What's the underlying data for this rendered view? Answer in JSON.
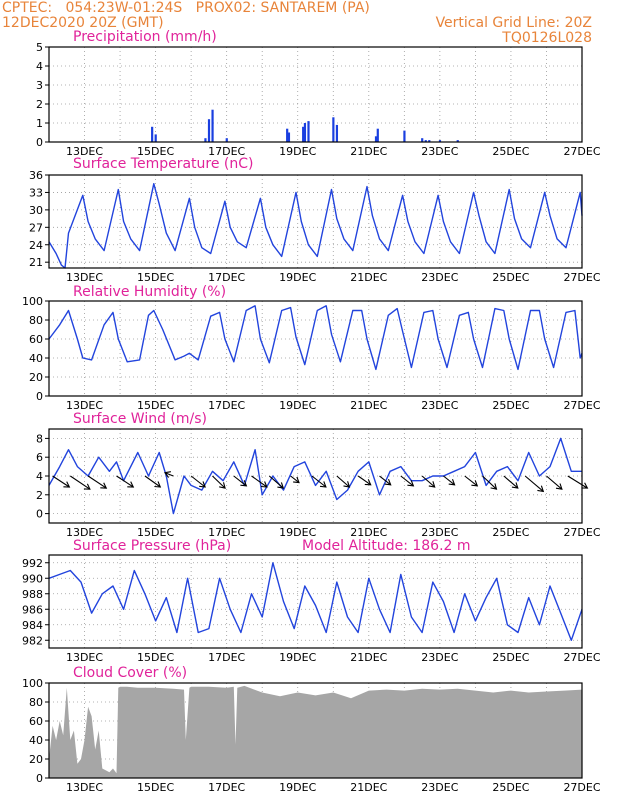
{
  "header": {
    "line1_left": "CPTEC:   054:23W-01:24S   PROX02: SANTAREM (PA)",
    "line2_left": "12DEC2020 20Z (GMT)",
    "line2_right": "Vertical Grid Line: 20Z",
    "line3_right": "TQ0126L028"
  },
  "colors": {
    "header": "#e8843a",
    "title": "#e0239a",
    "line": "#2244dd",
    "bar": "#1a3fe0",
    "cloud": "#a6a6a6",
    "arrow": "#000000"
  },
  "chart_data": [
    {
      "type": "bar",
      "title": "Precipitation (mm/h)",
      "ylim": [
        0,
        5
      ],
      "yticks": [
        0,
        1,
        2,
        3,
        4,
        5
      ],
      "xticks": [
        "13DEC",
        "15DEC",
        "17DEC",
        "19DEC",
        "21DEC",
        "23DEC",
        "25DEC",
        "27DEC"
      ],
      "x": [
        2.9,
        3.0,
        4.4,
        4.5,
        4.6,
        5.0,
        6.7,
        6.75,
        7.15,
        7.2,
        7.3,
        8.0,
        8.1,
        9.2,
        9.25,
        10.0,
        10.5,
        10.6,
        10.7,
        11.0,
        11.5
      ],
      "values": [
        0.8,
        0.4,
        0.2,
        1.2,
        1.7,
        0.2,
        0.7,
        0.5,
        0.8,
        1.0,
        1.1,
        1.3,
        0.9,
        0.3,
        0.7,
        0.6,
        0.2,
        0.1,
        0.1,
        0.1,
        0.1
      ]
    },
    {
      "type": "line",
      "title": "Surface Temperature (nC)",
      "ylim": [
        20,
        36
      ],
      "yticks": [
        21,
        24,
        27,
        30,
        33,
        36
      ],
      "xticks": [
        "13DEC",
        "15DEC",
        "17DEC",
        "19DEC",
        "21DEC",
        "23DEC",
        "25DEC",
        "27DEC"
      ],
      "x": [
        0,
        0.2,
        0.35,
        0.45,
        0.55,
        0.95,
        1.1,
        1.3,
        1.55,
        1.95,
        2.1,
        2.3,
        2.55,
        2.95,
        3.1,
        3.3,
        3.55,
        3.95,
        4.1,
        4.3,
        4.55,
        4.95,
        5.1,
        5.3,
        5.55,
        5.95,
        6.1,
        6.3,
        6.55,
        6.95,
        7.1,
        7.3,
        7.55,
        7.95,
        8.1,
        8.3,
        8.55,
        8.95,
        9.1,
        9.3,
        9.55,
        9.95,
        10.1,
        10.3,
        10.55,
        10.95,
        11.1,
        11.3,
        11.55,
        11.95,
        12.1,
        12.3,
        12.55,
        12.95,
        13.1,
        13.3,
        13.55,
        13.95,
        14.1,
        14.3,
        14.55,
        14.95,
        15.0
      ],
      "values": [
        24.5,
        22.5,
        20.5,
        20.0,
        26,
        32.5,
        28,
        25,
        23,
        33.5,
        28,
        25,
        23,
        34.5,
        31,
        26,
        23,
        32,
        27,
        23.5,
        22.5,
        31.5,
        27,
        24.5,
        23.5,
        32,
        27,
        24,
        22,
        33,
        28,
        24,
        22,
        33.5,
        28.5,
        25,
        23,
        34,
        29,
        25,
        23,
        32.5,
        28,
        24.5,
        22.5,
        32.5,
        28,
        24.5,
        22.5,
        33,
        29,
        24.5,
        22.5,
        33.5,
        28.5,
        25,
        23.5,
        33,
        29,
        25,
        23.5,
        33,
        29
      ]
    },
    {
      "type": "line",
      "title": "Relative Humidity (%)",
      "ylim": [
        0,
        100
      ],
      "yticks": [
        0,
        20,
        40,
        60,
        80,
        100
      ],
      "xticks": [
        "13DEC",
        "15DEC",
        "17DEC",
        "19DEC",
        "21DEC",
        "23DEC",
        "25DEC",
        "27DEC"
      ],
      "x": [
        0,
        0.3,
        0.55,
        0.8,
        0.95,
        1.2,
        1.55,
        1.8,
        1.95,
        2.2,
        2.55,
        2.8,
        2.95,
        3.2,
        3.55,
        3.8,
        3.95,
        4.2,
        4.55,
        4.8,
        4.95,
        5.2,
        5.55,
        5.8,
        5.95,
        6.2,
        6.55,
        6.8,
        6.95,
        7.2,
        7.55,
        7.8,
        7.95,
        8.2,
        8.55,
        8.8,
        8.95,
        9.2,
        9.55,
        9.8,
        9.95,
        10.2,
        10.55,
        10.8,
        10.95,
        11.2,
        11.55,
        11.8,
        11.95,
        12.2,
        12.55,
        12.8,
        12.95,
        13.2,
        13.55,
        13.8,
        13.95,
        14.2,
        14.55,
        14.8,
        14.95,
        15.0
      ],
      "values": [
        60,
        75,
        90,
        60,
        40,
        38,
        75,
        88,
        60,
        36,
        38,
        85,
        90,
        70,
        38,
        42,
        45,
        38,
        84,
        88,
        60,
        36,
        90,
        95,
        60,
        35,
        90,
        93,
        62,
        33,
        90,
        95,
        65,
        36,
        90,
        90,
        60,
        28,
        85,
        92,
        68,
        30,
        88,
        90,
        60,
        30,
        85,
        88,
        60,
        30,
        92,
        90,
        60,
        28,
        90,
        90,
        60,
        30,
        88,
        90,
        40,
        45
      ]
    },
    {
      "type": "line",
      "title": "Surface Wind (m/s)",
      "ylim": [
        -1,
        9
      ],
      "yticks": [
        0,
        2,
        4,
        6,
        8
      ],
      "xticks": [
        "13DEC",
        "15DEC",
        "17DEC",
        "19DEC",
        "21DEC",
        "23DEC",
        "25DEC",
        "27DEC"
      ],
      "x": [
        0,
        0.3,
        0.55,
        0.8,
        1.1,
        1.4,
        1.7,
        1.9,
        2.1,
        2.5,
        2.8,
        3.1,
        3.3,
        3.5,
        3.8,
        4.0,
        4.3,
        4.6,
        4.9,
        5.2,
        5.5,
        5.8,
        6.0,
        6.3,
        6.6,
        6.9,
        7.2,
        7.5,
        7.8,
        8.1,
        8.4,
        8.7,
        9.0,
        9.3,
        9.6,
        9.9,
        10.2,
        10.5,
        10.8,
        11.1,
        11.4,
        11.7,
        12.0,
        12.3,
        12.6,
        12.9,
        13.2,
        13.5,
        13.8,
        14.1,
        14.4,
        14.7,
        15.0
      ],
      "values": [
        3,
        5,
        6.8,
        5,
        4,
        6,
        4.5,
        5.5,
        3.5,
        6.5,
        4,
        6.5,
        4,
        0,
        4,
        3,
        2.5,
        4.5,
        3.5,
        5.5,
        3,
        6.8,
        2,
        4,
        2.5,
        5,
        5.5,
        3,
        4.5,
        1.5,
        2.5,
        4.5,
        5.5,
        2,
        4.5,
        5,
        3.5,
        3.5,
        4,
        4,
        4.5,
        5,
        6.5,
        3,
        4.5,
        5,
        3.5,
        6.5,
        4,
        5,
        8,
        4.5,
        4.5
      ],
      "vectors": [
        {
          "x": 0.1,
          "dx": 1.2,
          "dy": 1.0
        },
        {
          "x": 0.6,
          "dx": 1.4,
          "dy": 1.2
        },
        {
          "x": 1.1,
          "dx": 1.3,
          "dy": 1.1
        },
        {
          "x": 1.9,
          "dx": 1.2,
          "dy": 1.0
        },
        {
          "x": 2.7,
          "dx": 1.1,
          "dy": 1.0
        },
        {
          "x": 3.5,
          "dx": -0.6,
          "dy": -0.3
        },
        {
          "x": 4.0,
          "dx": 1.0,
          "dy": 1.0
        },
        {
          "x": 4.6,
          "dx": 0.9,
          "dy": 1.1
        },
        {
          "x": 5.2,
          "dx": 0.9,
          "dy": 0.9
        },
        {
          "x": 5.7,
          "dx": 1.1,
          "dy": 1.0
        },
        {
          "x": 6.2,
          "dx": 1.0,
          "dy": 1.1
        },
        {
          "x": 6.8,
          "dx": 0.6,
          "dy": 0.6
        },
        {
          "x": 7.4,
          "dx": 1.0,
          "dy": 1.0
        },
        {
          "x": 8.1,
          "dx": 0.9,
          "dy": 1.0
        },
        {
          "x": 8.7,
          "dx": 0.9,
          "dy": 0.8
        },
        {
          "x": 9.3,
          "dx": 0.8,
          "dy": 0.8
        },
        {
          "x": 9.9,
          "dx": 0.9,
          "dy": 0.9
        },
        {
          "x": 10.5,
          "dx": 0.9,
          "dy": 1.0
        },
        {
          "x": 11.1,
          "dx": 0.8,
          "dy": 0.8
        },
        {
          "x": 11.7,
          "dx": 0.9,
          "dy": 0.9
        },
        {
          "x": 12.2,
          "dx": 1.0,
          "dy": 1.2
        },
        {
          "x": 12.8,
          "dx": 1.0,
          "dy": 1.1
        },
        {
          "x": 13.4,
          "dx": 1.3,
          "dy": 1.4
        },
        {
          "x": 14.0,
          "dx": 1.1,
          "dy": 1.2
        },
        {
          "x": 14.6,
          "dx": 1.4,
          "dy": 1.1
        }
      ]
    },
    {
      "type": "line",
      "title": "Surface Pressure (hPa)",
      "annotation": "Model Altitude: 186.2 m",
      "ylim": [
        981,
        993
      ],
      "yticks": [
        982,
        984,
        986,
        988,
        990,
        992
      ],
      "xticks": [
        "13DEC",
        "15DEC",
        "17DEC",
        "19DEC",
        "21DEC",
        "23DEC",
        "25DEC",
        "27DEC"
      ],
      "x": [
        0,
        0.3,
        0.6,
        0.9,
        1.2,
        1.5,
        1.8,
        2.1,
        2.4,
        2.7,
        3.0,
        3.3,
        3.6,
        3.9,
        4.2,
        4.5,
        4.8,
        5.1,
        5.4,
        5.7,
        6.0,
        6.3,
        6.6,
        6.9,
        7.2,
        7.5,
        7.8,
        8.1,
        8.4,
        8.7,
        9.0,
        9.3,
        9.6,
        9.9,
        10.2,
        10.5,
        10.8,
        11.1,
        11.4,
        11.7,
        12.0,
        12.3,
        12.6,
        12.9,
        13.2,
        13.5,
        13.8,
        14.1,
        14.4,
        14.7,
        15.0
      ],
      "values": [
        990,
        990.5,
        991,
        989.5,
        985.5,
        988,
        989,
        986,
        991,
        988,
        984.5,
        987.5,
        983,
        990,
        983,
        983.5,
        990,
        986,
        983,
        988,
        985,
        992,
        987,
        983.5,
        989,
        986.5,
        983,
        989.5,
        985,
        983,
        990,
        986,
        983,
        990.5,
        985,
        983,
        989.5,
        987,
        983,
        988,
        984.5,
        987.5,
        990,
        984,
        983,
        987.5,
        984,
        989,
        985.5,
        982,
        986
      ]
    },
    {
      "type": "area",
      "title": "Cloud Cover (%)",
      "ylim": [
        0,
        100
      ],
      "yticks": [
        0,
        20,
        40,
        60,
        80,
        100
      ],
      "xticks": [
        "13DEC",
        "15DEC",
        "17DEC",
        "19DEC",
        "21DEC",
        "23DEC",
        "25DEC",
        "27DEC"
      ],
      "x": [
        0,
        0.1,
        0.2,
        0.3,
        0.4,
        0.5,
        0.6,
        0.7,
        0.8,
        0.9,
        1.0,
        1.1,
        1.2,
        1.3,
        1.4,
        1.5,
        1.6,
        1.7,
        1.8,
        1.9,
        1.95,
        2.0,
        2.2,
        2.5,
        3.0,
        3.5,
        3.8,
        3.85,
        3.95,
        4.0,
        4.5,
        5.0,
        5.2,
        5.25,
        5.3,
        5.5,
        6.0,
        6.5,
        7.0,
        7.5,
        8.0,
        8.5,
        9.0,
        9.5,
        10.0,
        10.5,
        11.0,
        11.5,
        12.0,
        12.5,
        13.0,
        13.5,
        14.0,
        14.5,
        15.0
      ],
      "values": [
        20,
        55,
        40,
        60,
        45,
        95,
        40,
        50,
        15,
        20,
        40,
        75,
        65,
        30,
        50,
        10,
        8,
        6,
        10,
        5,
        95,
        96,
        96,
        95,
        95,
        94,
        93,
        40,
        95,
        96,
        96,
        95,
        96,
        35,
        95,
        97,
        90,
        86,
        90,
        87,
        90,
        84,
        92,
        93,
        92,
        94,
        93,
        94,
        92,
        90,
        92,
        90,
        91,
        92,
        93
      ]
    }
  ]
}
